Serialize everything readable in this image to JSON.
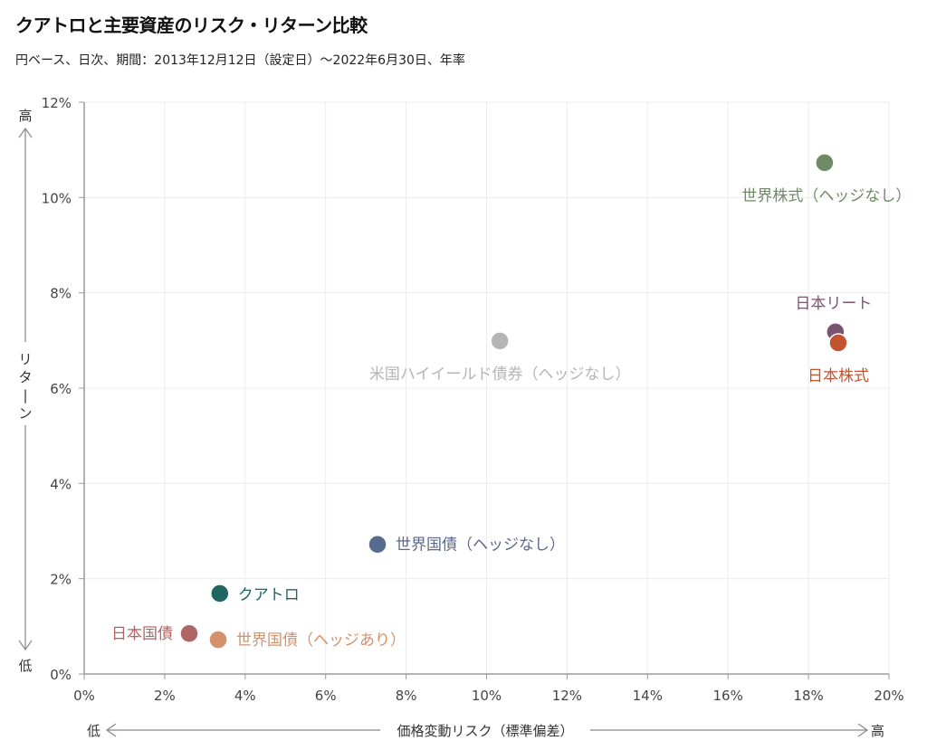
{
  "chart_data": {
    "type": "scatter",
    "title": "クアトロと主要資産のリスク・リターン比較",
    "subtitle": "円ベース、日次、期間：2013年12月12日（設定日）～2022年6月30日、年率",
    "xlabel": "価格変動リスク（標準偏差）",
    "ylabel": "リターン",
    "x_low": "低",
    "x_high": "高",
    "y_low": "低",
    "y_high": "高",
    "xlim": [
      0,
      20
    ],
    "ylim": [
      0,
      12
    ],
    "grid": true,
    "x_ticks": [
      0,
      2,
      4,
      6,
      8,
      10,
      12,
      14,
      16,
      18,
      20
    ],
    "y_ticks": [
      0,
      2,
      4,
      6,
      8,
      10,
      12
    ],
    "x_tick_labels": [
      "0%",
      "2%",
      "4%",
      "6%",
      "8%",
      "10%",
      "12%",
      "14%",
      "16%",
      "18%",
      "20%"
    ],
    "y_tick_labels": [
      "0%",
      "2%",
      "4%",
      "6%",
      "8%",
      "10%",
      "12%"
    ],
    "points": [
      {
        "name": "世界株式（ヘッジなし）",
        "x": 18.4,
        "y": 10.73,
        "color": "#6e8a66",
        "label_pos": "below"
      },
      {
        "name": "日本リート",
        "x": 18.67,
        "y": 7.18,
        "color": "#7a5470",
        "label_pos": "above"
      },
      {
        "name": "日本株式",
        "x": 18.74,
        "y": 6.95,
        "color": "#c1542e",
        "label_pos": "below"
      },
      {
        "name": "米国ハイイールド債券（ヘッジなし）",
        "x": 10.33,
        "y": 6.99,
        "color": "#b5b5b5",
        "label_pos": "below"
      },
      {
        "name": "世界国債（ヘッジなし）",
        "x": 7.29,
        "y": 2.72,
        "color": "#596a8f",
        "label_pos": "right"
      },
      {
        "name": "クアトロ",
        "x": 3.37,
        "y": 1.69,
        "color": "#1e6660",
        "label_pos": "right"
      },
      {
        "name": "日本国債",
        "x": 2.61,
        "y": 0.85,
        "color": "#ad6565",
        "label_pos": "left"
      },
      {
        "name": "世界国債（ヘッジあり）",
        "x": 3.33,
        "y": 0.72,
        "color": "#d5916a",
        "label_pos": "right"
      }
    ]
  }
}
